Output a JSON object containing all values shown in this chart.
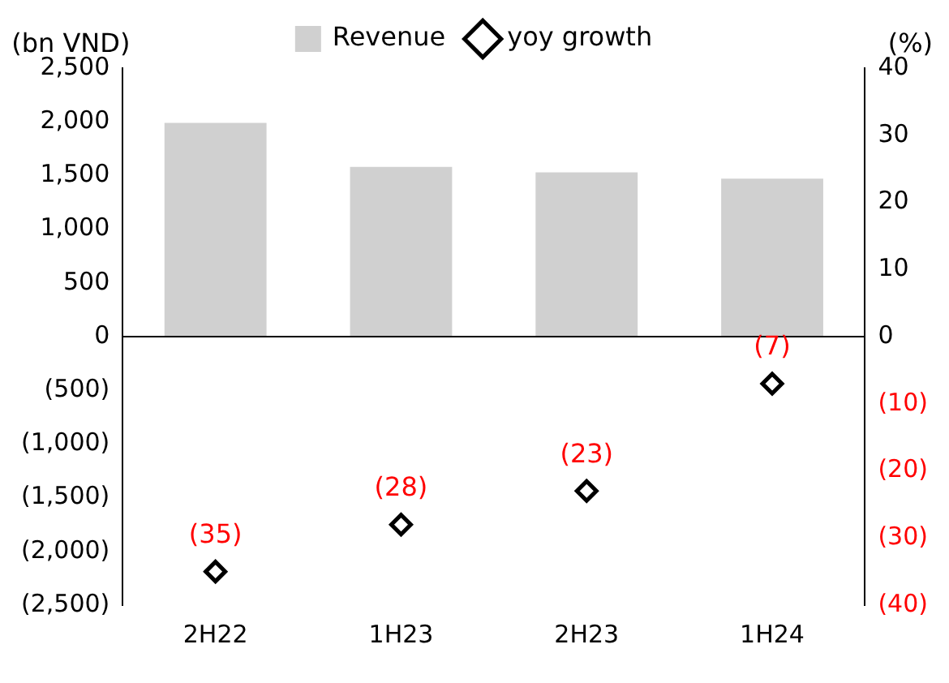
{
  "chart_data": {
    "type": "bar",
    "ylabel": "(bn VND)",
    "y2label": "(%)",
    "categories": [
      "2H22",
      "1H23",
      "2H23",
      "1H24"
    ],
    "series": [
      {
        "name": "Revenue",
        "color": "#d0d0d0",
        "values": [
          1990,
          1580,
          1530,
          1470
        ]
      },
      {
        "name": "yoy growth",
        "type": "scatter",
        "axis": "y2",
        "color": "#000000",
        "marker": "diamond",
        "values": [
          -35,
          -28,
          -23,
          -7
        ],
        "value_labels": [
          "(35)",
          "(28)",
          "(23)",
          "(7)"
        ]
      }
    ],
    "ylim": [
      -2500,
      2500
    ],
    "yticks": [
      {
        "value": -2500,
        "label": "(2,500)"
      },
      {
        "value": -2000,
        "label": "(2,000)"
      },
      {
        "value": -1500,
        "label": "(1,500)"
      },
      {
        "value": -1000,
        "label": "(1,000)"
      },
      {
        "value": -500,
        "label": "(500)"
      },
      0,
      {
        "value": 500,
        "label": "500"
      },
      {
        "value": 1000,
        "label": "1,000"
      },
      {
        "value": 1500,
        "label": "1,500"
      },
      {
        "value": 2000,
        "label": "2,000"
      },
      {
        "value": 2500,
        "label": "2,500"
      }
    ],
    "y2lim": [
      -40,
      40
    ],
    "y2ticks": [
      {
        "value": -40,
        "label": "(40)"
      },
      {
        "value": -30,
        "label": "(30)"
      },
      {
        "value": -20,
        "label": "(20)"
      },
      {
        "value": -10,
        "label": "(10)"
      },
      0,
      10,
      20,
      30,
      40
    ],
    "ref_lines": [
      {
        "axis": "y",
        "value": 0,
        "color": "#000000"
      }
    ],
    "legend": "top"
  }
}
